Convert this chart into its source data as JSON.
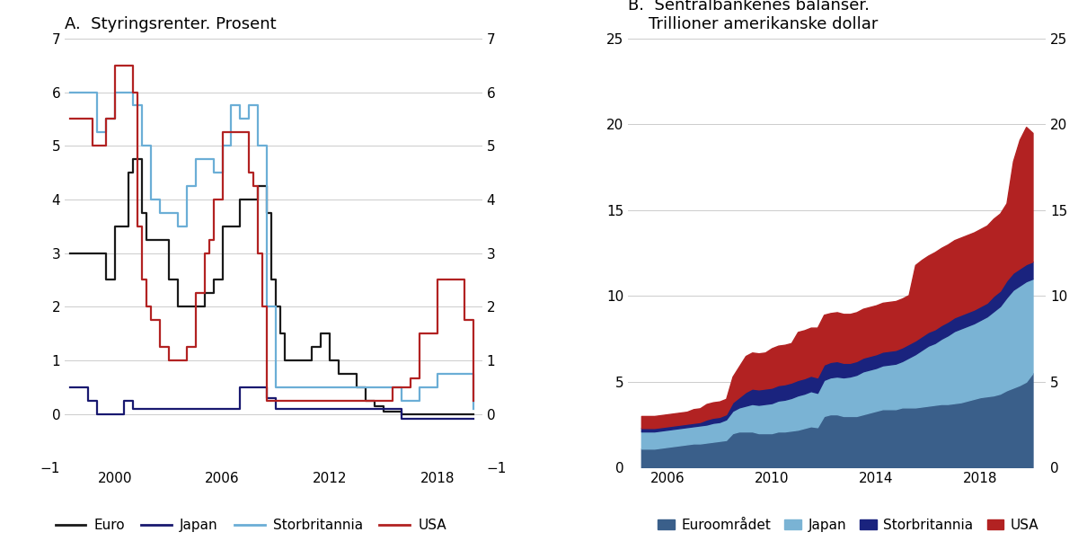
{
  "title_A": "A.  Styringsrenter. Prosent",
  "title_B": "B.  Sentralbankenes balanser.\n    Trillioner amerikanske dollar",
  "panel_A": {
    "xlim": [
      1997.2,
      2020.5
    ],
    "ylim": [
      -1,
      7
    ],
    "yticks": [
      -1,
      0,
      1,
      2,
      3,
      4,
      5,
      6,
      7
    ],
    "xticks": [
      2000,
      2006,
      2012,
      2018
    ],
    "colors": {
      "Euro": "#1a1a1a",
      "Japan": "#191970",
      "Storbritannia": "#6baed6",
      "USA": "#b22222"
    },
    "Euro_x": [
      1997.5,
      1998.75,
      1999.0,
      1999.5,
      2000.0,
      2000.75,
      2001.0,
      2001.5,
      2001.75,
      2002.5,
      2003.0,
      2003.5,
      2004.0,
      2005.0,
      2005.5,
      2006.0,
      2007.0,
      2007.5,
      2008.0,
      2008.5,
      2008.75,
      2009.0,
      2009.25,
      2009.5,
      2010.0,
      2011.0,
      2011.5,
      2012.0,
      2012.5,
      2013.0,
      2013.5,
      2014.0,
      2014.5,
      2015.0,
      2016.0,
      2019.0,
      2020.0
    ],
    "Euro_y": [
      3.0,
      3.0,
      3.0,
      2.5,
      3.5,
      4.5,
      4.75,
      3.75,
      3.25,
      3.25,
      2.5,
      2.0,
      2.0,
      2.25,
      2.5,
      3.5,
      4.0,
      4.0,
      4.25,
      3.75,
      2.5,
      2.0,
      1.5,
      1.0,
      1.0,
      1.25,
      1.5,
      1.0,
      0.75,
      0.75,
      0.5,
      0.25,
      0.15,
      0.05,
      0.0,
      0.0,
      0.0
    ],
    "Japan_x": [
      1997.5,
      1998.5,
      1999.0,
      2000.0,
      2000.5,
      2001.0,
      2006.0,
      2007.0,
      2008.0,
      2008.5,
      2009.0,
      2016.0,
      2020.0
    ],
    "Japan_y": [
      0.5,
      0.25,
      0.0,
      0.0,
      0.25,
      0.1,
      0.1,
      0.5,
      0.5,
      0.3,
      0.1,
      -0.1,
      -0.1
    ],
    "UK_x": [
      1997.5,
      1998.0,
      1998.5,
      1999.0,
      1999.5,
      2000.0,
      2000.5,
      2001.0,
      2001.5,
      2002.0,
      2002.5,
      2003.0,
      2003.5,
      2004.0,
      2004.5,
      2005.0,
      2005.5,
      2006.0,
      2006.5,
      2007.0,
      2007.5,
      2008.0,
      2008.5,
      2009.0,
      2009.5,
      2010.0,
      2015.0,
      2016.0,
      2016.75,
      2017.0,
      2017.5,
      2018.0,
      2019.0,
      2020.0
    ],
    "UK_y": [
      6.0,
      6.0,
      6.0,
      5.25,
      5.5,
      6.0,
      6.0,
      5.75,
      5.0,
      4.0,
      3.75,
      3.75,
      3.5,
      4.25,
      4.75,
      4.75,
      4.5,
      5.0,
      5.75,
      5.5,
      5.75,
      5.0,
      2.0,
      0.5,
      0.5,
      0.5,
      0.5,
      0.25,
      0.25,
      0.5,
      0.5,
      0.75,
      0.75,
      0.1
    ],
    "USA_x": [
      1997.5,
      1998.25,
      1998.75,
      1999.25,
      1999.5,
      2000.0,
      2000.25,
      2000.75,
      2001.0,
      2001.25,
      2001.5,
      2001.75,
      2002.0,
      2002.5,
      2003.0,
      2003.5,
      2004.0,
      2004.5,
      2005.0,
      2005.25,
      2005.5,
      2006.0,
      2006.5,
      2007.0,
      2007.5,
      2007.75,
      2008.0,
      2008.25,
      2008.5,
      2009.0,
      2009.5,
      2015.0,
      2015.5,
      2016.0,
      2016.5,
      2017.0,
      2017.5,
      2018.0,
      2018.5,
      2019.0,
      2019.5,
      2020.0
    ],
    "USA_y": [
      5.5,
      5.5,
      5.0,
      5.0,
      5.5,
      6.5,
      6.5,
      6.5,
      6.0,
      3.5,
      2.5,
      2.0,
      1.75,
      1.25,
      1.0,
      1.0,
      1.25,
      2.25,
      3.0,
      3.25,
      4.0,
      5.25,
      5.25,
      5.25,
      4.5,
      4.25,
      3.0,
      2.0,
      0.25,
      0.25,
      0.25,
      0.25,
      0.5,
      0.5,
      0.66,
      1.5,
      1.5,
      2.5,
      2.5,
      2.5,
      1.75,
      0.25
    ]
  },
  "panel_B": {
    "xlim": [
      2004.5,
      2020.5
    ],
    "ylim": [
      0,
      25
    ],
    "yticks": [
      0,
      5,
      10,
      15,
      20,
      25
    ],
    "xticks": [
      2006,
      2010,
      2014,
      2018
    ],
    "colors": {
      "Euroområdet": "#3a5f8a",
      "Japan": "#7ab3d4",
      "Storbritannia": "#1a237e",
      "USA": "#b22222"
    },
    "years": [
      2005.0,
      2005.25,
      2005.5,
      2005.75,
      2006.0,
      2006.25,
      2006.5,
      2006.75,
      2007.0,
      2007.25,
      2007.5,
      2007.75,
      2008.0,
      2008.25,
      2008.5,
      2008.75,
      2009.0,
      2009.25,
      2009.5,
      2009.75,
      2010.0,
      2010.25,
      2010.5,
      2010.75,
      2011.0,
      2011.25,
      2011.5,
      2011.75,
      2012.0,
      2012.25,
      2012.5,
      2012.75,
      2013.0,
      2013.25,
      2013.5,
      2013.75,
      2014.0,
      2014.25,
      2014.5,
      2014.75,
      2015.0,
      2015.25,
      2015.5,
      2015.75,
      2016.0,
      2016.25,
      2016.5,
      2016.75,
      2017.0,
      2017.25,
      2017.5,
      2017.75,
      2018.0,
      2018.25,
      2018.5,
      2018.75,
      2019.0,
      2019.25,
      2019.5,
      2019.75,
      2020.0
    ],
    "Euroområdet": [
      1.1,
      1.1,
      1.1,
      1.15,
      1.2,
      1.25,
      1.3,
      1.35,
      1.4,
      1.4,
      1.45,
      1.5,
      1.55,
      1.6,
      2.0,
      2.1,
      2.1,
      2.1,
      2.0,
      2.0,
      2.0,
      2.1,
      2.1,
      2.15,
      2.2,
      2.3,
      2.4,
      2.35,
      3.0,
      3.1,
      3.1,
      3.0,
      3.0,
      3.0,
      3.1,
      3.2,
      3.3,
      3.4,
      3.4,
      3.4,
      3.5,
      3.5,
      3.5,
      3.55,
      3.6,
      3.65,
      3.7,
      3.7,
      3.75,
      3.8,
      3.9,
      4.0,
      4.1,
      4.15,
      4.2,
      4.3,
      4.5,
      4.65,
      4.8,
      5.0,
      5.5
    ],
    "Japan": [
      1.0,
      1.0,
      1.0,
      1.0,
      1.0,
      1.0,
      1.0,
      1.0,
      1.0,
      1.05,
      1.05,
      1.1,
      1.1,
      1.2,
      1.3,
      1.4,
      1.5,
      1.6,
      1.65,
      1.7,
      1.75,
      1.8,
      1.85,
      1.9,
      2.0,
      2.0,
      2.05,
      2.0,
      2.1,
      2.15,
      2.2,
      2.25,
      2.3,
      2.4,
      2.5,
      2.5,
      2.5,
      2.55,
      2.6,
      2.65,
      2.7,
      2.9,
      3.1,
      3.3,
      3.5,
      3.6,
      3.8,
      4.0,
      4.2,
      4.3,
      4.35,
      4.4,
      4.5,
      4.65,
      4.9,
      5.1,
      5.4,
      5.7,
      5.8,
      5.85,
      5.5
    ],
    "Storbritannia": [
      0.2,
      0.2,
      0.2,
      0.2,
      0.2,
      0.2,
      0.2,
      0.2,
      0.2,
      0.2,
      0.3,
      0.3,
      0.3,
      0.3,
      0.5,
      0.6,
      0.8,
      0.9,
      0.9,
      0.9,
      0.9,
      0.9,
      0.9,
      0.9,
      0.9,
      0.9,
      0.9,
      0.9,
      0.9,
      0.9,
      0.9,
      0.85,
      0.8,
      0.8,
      0.8,
      0.8,
      0.8,
      0.8,
      0.8,
      0.8,
      0.8,
      0.8,
      0.8,
      0.8,
      0.8,
      0.8,
      0.8,
      0.8,
      0.8,
      0.8,
      0.8,
      0.8,
      0.8,
      0.8,
      0.9,
      0.9,
      1.0,
      1.0,
      1.0,
      1.0,
      1.0
    ],
    "USA": [
      0.7,
      0.7,
      0.7,
      0.7,
      0.7,
      0.7,
      0.7,
      0.7,
      0.8,
      0.8,
      0.9,
      0.9,
      0.9,
      0.9,
      1.5,
      1.8,
      2.1,
      2.1,
      2.1,
      2.1,
      2.3,
      2.3,
      2.3,
      2.3,
      2.8,
      2.8,
      2.8,
      2.9,
      2.9,
      2.85,
      2.85,
      2.85,
      2.85,
      2.85,
      2.85,
      2.85,
      2.85,
      2.85,
      2.85,
      2.85,
      2.85,
      2.85,
      4.4,
      4.45,
      4.45,
      4.5,
      4.5,
      4.5,
      4.5,
      4.5,
      4.5,
      4.5,
      4.5,
      4.5,
      4.5,
      4.5,
      4.5,
      6.5,
      7.5,
      8.0,
      7.5
    ]
  },
  "bg_color": "#ffffff",
  "grid_color": "#cccccc",
  "title_fontsize": 13,
  "tick_fontsize": 11,
  "legend_fontsize": 11
}
